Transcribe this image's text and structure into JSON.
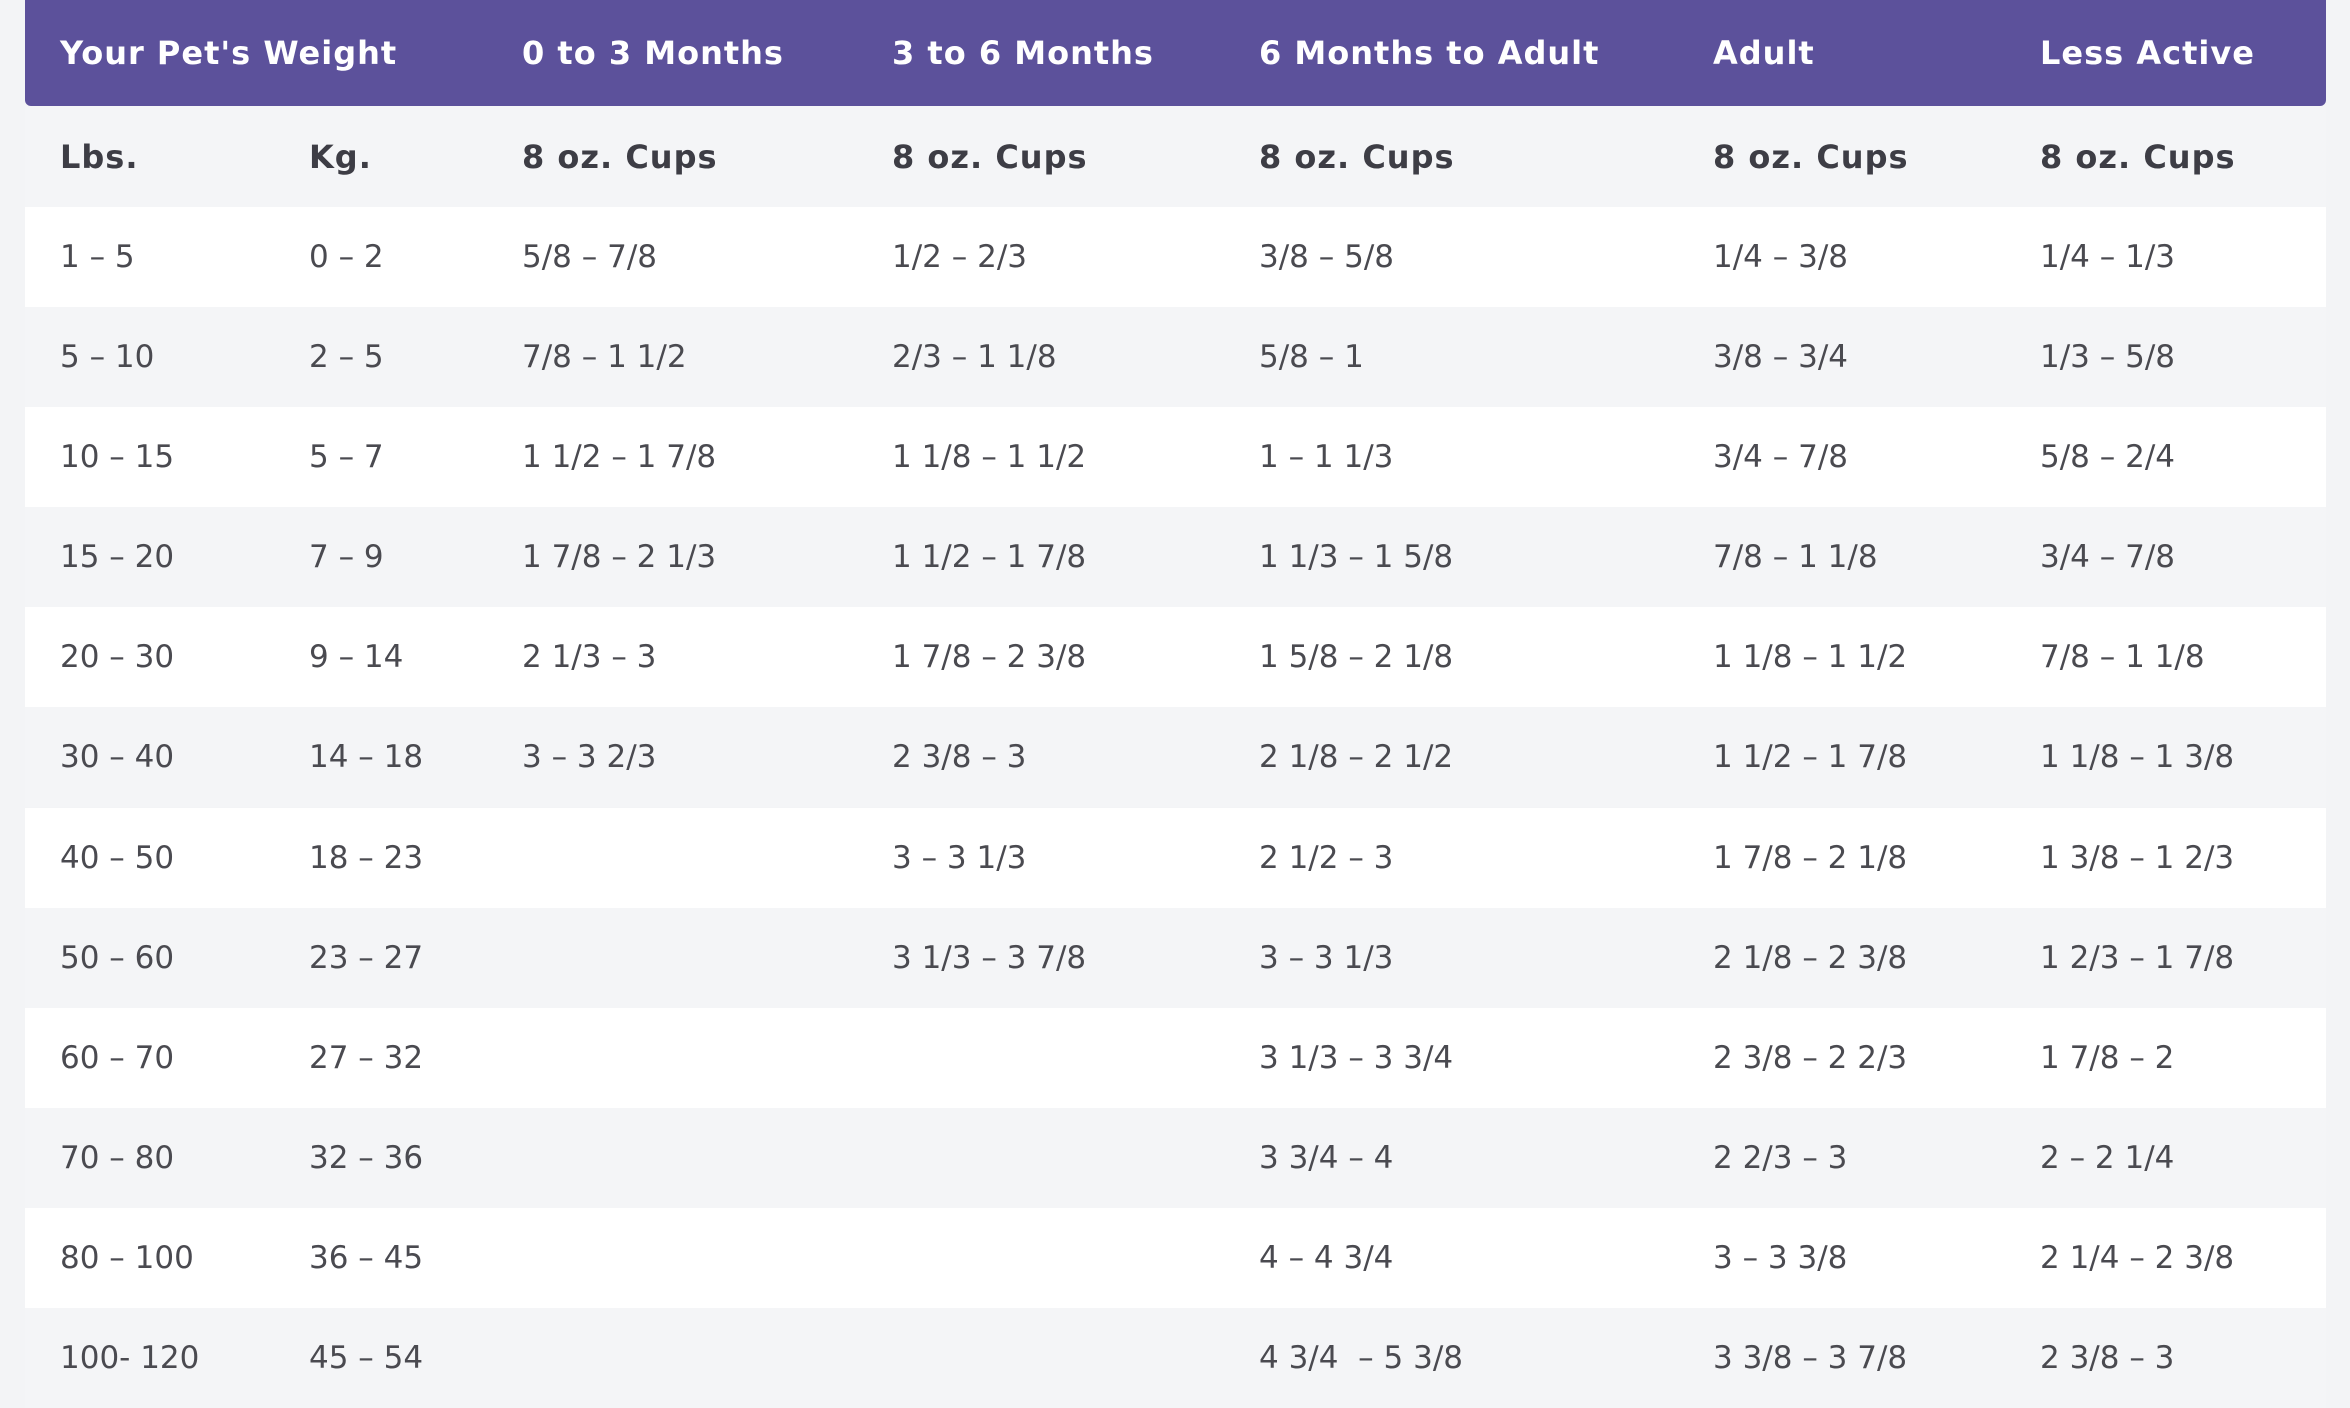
{
  "header": {
    "weight": "Your Pet's Weight",
    "columns": [
      "0 to 3 Months",
      "3 to 6 Months",
      "6 Months to Adult",
      "Adult",
      "Less Active"
    ]
  },
  "subheader": [
    "Lbs.",
    "Kg.",
    "8 oz. Cups",
    "8 oz. Cups",
    "8 oz. Cups",
    "8 oz. Cups",
    "8 oz. Cups"
  ],
  "rows": [
    [
      "1 – 5",
      "0 – 2",
      "5/8 – 7/8",
      "1/2 – 2/3",
      "3/8 – 5/8",
      "1/4 – 3/8",
      "1/4 – 1/3"
    ],
    [
      "5 – 10",
      "2 – 5",
      "7/8 – 1 1/2",
      "2/3 – 1 1/8",
      "5/8 – 1",
      "3/8 – 3/4",
      "1/3 – 5/8"
    ],
    [
      "10 – 15",
      "5 – 7",
      "1 1/2 – 1 7/8",
      "1 1/8 – 1 1/2",
      "1 – 1 1/3",
      "3/4 – 7/8",
      "5/8 – 2/4"
    ],
    [
      "15 – 20",
      "7 – 9",
      "1 7/8 – 2 1/3",
      "1 1/2 – 1 7/8",
      "1 1/3 – 1 5/8",
      "7/8 – 1 1/8",
      "3/4 – 7/8"
    ],
    [
      "20 – 30",
      "9 – 14",
      "2 1/3 – 3",
      "1 7/8 – 2 3/8",
      "1 5/8 – 2 1/8",
      "1 1/8 – 1 1/2",
      "7/8 – 1 1/8"
    ],
    [
      "30 – 40",
      "14 – 18",
      "3 – 3 2/3",
      "2 3/8 – 3",
      "2 1/8 – 2 1/2",
      "1 1/2 – 1 7/8",
      "1 1/8 – 1 3/8"
    ],
    [
      "40 – 50",
      "18 – 23",
      null,
      "3 – 3 1/3",
      "2 1/2 – 3",
      "1 7/8 – 2 1/8",
      "1 3/8 – 1 2/3"
    ],
    [
      "50 – 60",
      "23 – 27",
      null,
      "3 1/3 – 3 7/8",
      "3 – 3 1/3",
      "2 1/8 – 2 3/8",
      "1 2/3 – 1 7/8"
    ],
    [
      "60 – 70",
      "27 – 32",
      null,
      null,
      "3 1/3 – 3 3/4",
      "2 3/8 – 2 2/3",
      "1 7/8 – 2"
    ],
    [
      "70 – 80",
      "32 – 36",
      null,
      null,
      "3 3/4 – 4",
      "2 2/3 – 3",
      "2 – 2 1/4"
    ],
    [
      "80 – 100",
      "36 – 45",
      null,
      null,
      "4 – 4 3/4",
      "3 – 3 3/8",
      "2 1/4 – 2 3/8"
    ],
    [
      "100- 120",
      "45 – 54",
      null,
      null,
      "4 3/4  – 5 3/8",
      "3 3/8 – 3 7/8",
      "2 3/8 – 3"
    ]
  ]
}
